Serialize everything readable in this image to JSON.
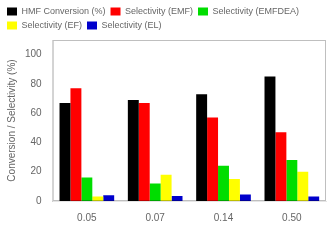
{
  "chart_data": {
    "type": "bar",
    "categories": [
      "0.05",
      "0.07",
      "0.14",
      "0.50"
    ],
    "series": [
      {
        "name": "HMF Conversion (%)",
        "color": "#000000",
        "values": [
          67,
          69,
          73,
          85
        ]
      },
      {
        "name": "Selectivity (EMF)",
        "color": "#ff0000",
        "values": [
          77,
          67,
          57,
          47
        ]
      },
      {
        "name": "Selectivity (EMFDEA)",
        "color": "#00dd00",
        "values": [
          16,
          12,
          24,
          28
        ]
      },
      {
        "name": "Selectivity (EF)",
        "color": "#ffff00",
        "values": [
          3,
          18,
          15,
          20
        ]
      },
      {
        "name": "Selectivity (EL)",
        "color": "#0000cc",
        "values": [
          4,
          3.5,
          4.5,
          3
        ]
      }
    ],
    "ylabel": "Conversion / Selectivity (%)",
    "ylim": [
      0,
      110
    ],
    "yticks": [
      0,
      20,
      40,
      60,
      80,
      100
    ],
    "grid": false,
    "legend": "upper left"
  }
}
